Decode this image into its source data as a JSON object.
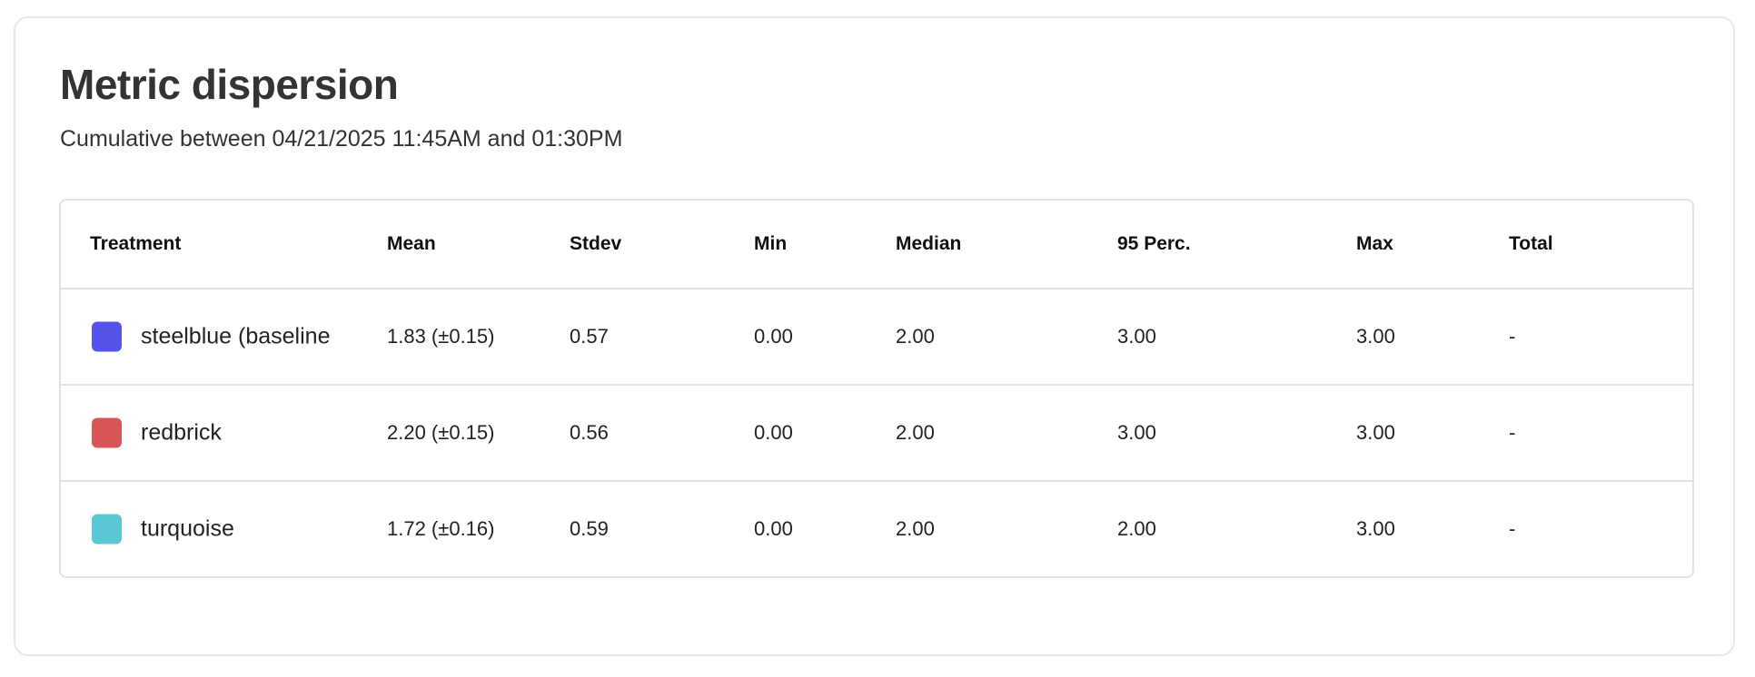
{
  "title": "Metric dispersion",
  "subtitle": "Cumulative between 04/21/2025 11:45AM and 01:30PM",
  "table": {
    "headers": [
      "Treatment",
      "Mean",
      "Stdev",
      "Min",
      "Median",
      "95 Perc.",
      "Max",
      "Total"
    ],
    "rows": [
      {
        "treatment": "steelblue  (baseline",
        "color": "#5653EA",
        "mean": "1.83 (±0.15)",
        "stdev": "0.57",
        "min": "0.00",
        "median": "2.00",
        "p95": "3.00",
        "max": "3.00",
        "total": "-"
      },
      {
        "treatment": "redbrick",
        "color": "#D65555",
        "mean": "2.20 (±0.15)",
        "stdev": "0.56",
        "min": "0.00",
        "median": "2.00",
        "p95": "3.00",
        "max": "3.00",
        "total": "-"
      },
      {
        "treatment": "turquoise",
        "color": "#5BC8D6",
        "mean": "1.72 (±0.16)",
        "stdev": "0.59",
        "min": "0.00",
        "median": "2.00",
        "p95": "2.00",
        "max": "3.00",
        "total": "-"
      }
    ]
  }
}
